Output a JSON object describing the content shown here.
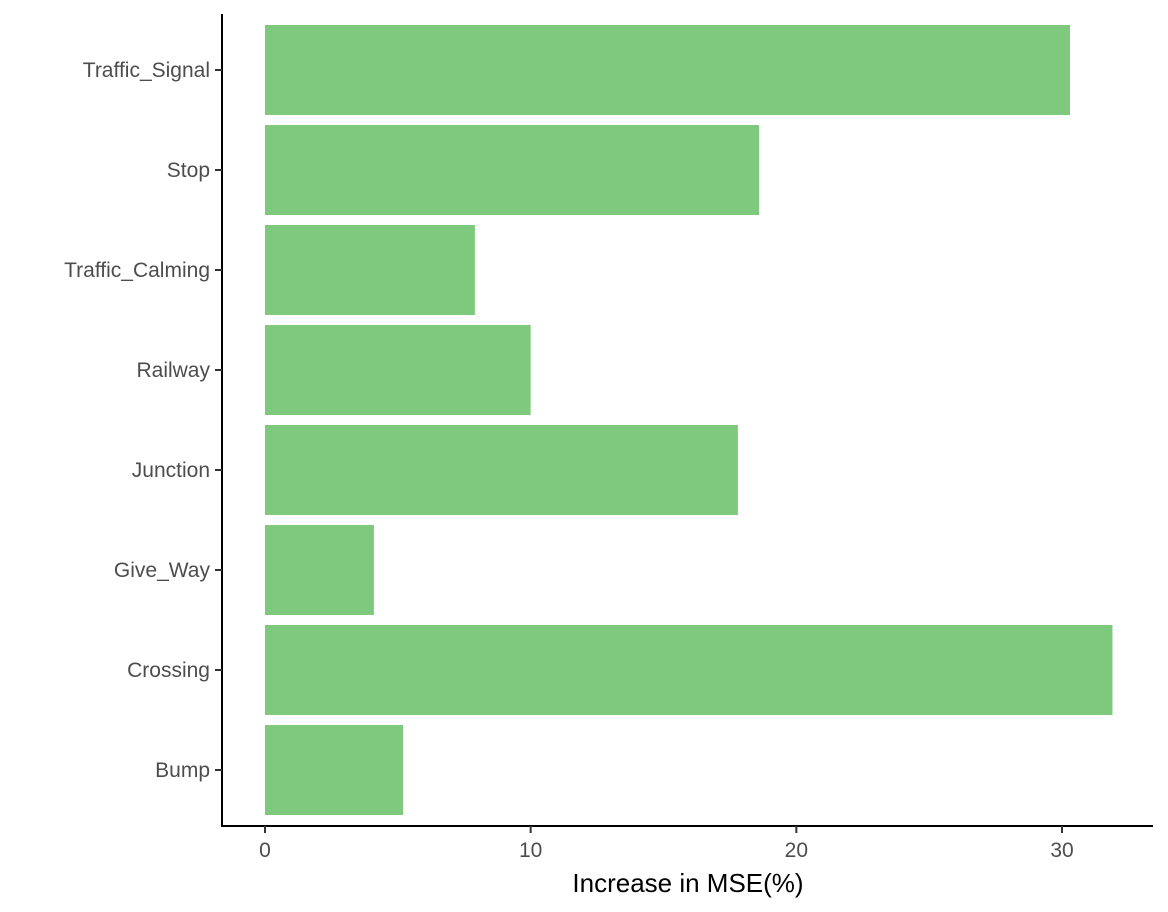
{
  "chart_data": {
    "type": "bar",
    "orientation": "horizontal",
    "categories": [
      "Traffic_Signal",
      "Stop",
      "Traffic_Calming",
      "Railway",
      "Junction",
      "Give_Way",
      "Crossing",
      "Bump"
    ],
    "values": [
      30.3,
      18.6,
      7.9,
      10.0,
      17.8,
      4.1,
      31.9,
      5.2
    ],
    "xlabel": "Increase in MSE(%)",
    "ylabel": "",
    "xlim": [
      0,
      33
    ],
    "xticks": [
      0,
      10,
      20,
      30
    ],
    "xtick_labels": [
      "0",
      "10",
      "20",
      "30"
    ],
    "bar_color": "#7fc97f",
    "grid": false,
    "legend": "none"
  }
}
